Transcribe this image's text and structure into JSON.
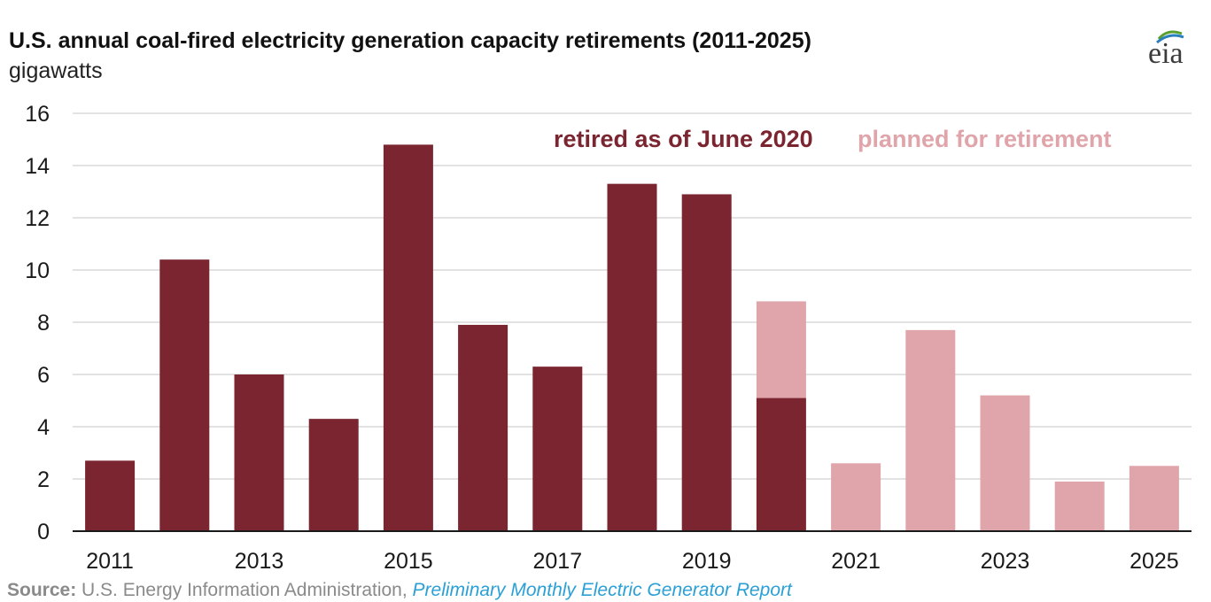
{
  "header": {
    "title": "U.S. annual coal-fired electricity generation capacity retirements (2011-2025)",
    "subtitle": "gigawatts",
    "logo_text": "eia"
  },
  "footer": {
    "source_label": "Source:",
    "source_text": " U.S. Energy Information Administration, ",
    "source_link": "Preliminary Monthly Electric Generator Report"
  },
  "colors": {
    "retired": "#7a2530",
    "planned": "#e0a5aa",
    "grid": "#d9d9d9",
    "axis": "#1a1a1a",
    "logo_swoosh_green": "#5aa02c",
    "logo_swoosh_blue": "#2a7fbd"
  },
  "chart_data": {
    "type": "bar",
    "stacked": true,
    "title": "U.S. annual coal-fired electricity generation capacity retirements (2011-2025)",
    "ylabel": "gigawatts",
    "xlabel": "",
    "ylim": [
      0,
      16
    ],
    "yticks": [
      0,
      2,
      4,
      6,
      8,
      10,
      12,
      14,
      16
    ],
    "grid": true,
    "legend_position": "top-right (inside plot)",
    "categories": [
      "2011",
      "2012",
      "2013",
      "2014",
      "2015",
      "2016",
      "2017",
      "2018",
      "2019",
      "2020",
      "2021",
      "2022",
      "2023",
      "2024",
      "2025"
    ],
    "x_tick_labels": [
      "2011",
      "",
      "2013",
      "",
      "2015",
      "",
      "2017",
      "",
      "2019",
      "",
      "2021",
      "",
      "2023",
      "",
      "2025"
    ],
    "series": [
      {
        "name": "retired as of June 2020",
        "color": "#7a2530",
        "values": [
          2.7,
          10.4,
          6.0,
          4.3,
          14.8,
          7.9,
          6.3,
          13.3,
          12.9,
          5.1,
          0,
          0,
          0,
          0,
          0
        ]
      },
      {
        "name": "planned for retirement",
        "color": "#e0a5aa",
        "values": [
          0,
          0,
          0,
          0,
          0,
          0,
          0,
          0,
          0,
          3.7,
          2.6,
          7.7,
          5.2,
          1.9,
          2.5
        ]
      }
    ]
  }
}
